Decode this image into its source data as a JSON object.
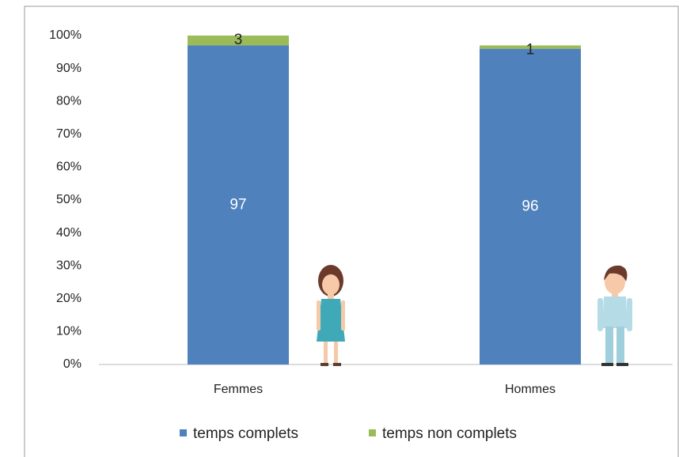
{
  "chart_data": {
    "type": "bar",
    "stacked": true,
    "categories": [
      "Femmes",
      "Hommes"
    ],
    "series": [
      {
        "name": "temps complets",
        "color": "#4f81bd",
        "values": [
          97,
          96
        ]
      },
      {
        "name": "temps non complets",
        "color": "#9bbb59",
        "values": [
          3,
          1
        ]
      }
    ],
    "ylim": [
      0,
      100
    ],
    "yticks": [
      {
        "value": 0,
        "label": "0%"
      },
      {
        "value": 10,
        "label": "10%"
      },
      {
        "value": 20,
        "label": "20%"
      },
      {
        "value": 30,
        "label": "30%"
      },
      {
        "value": 40,
        "label": "40%"
      },
      {
        "value": 50,
        "label": "50%"
      },
      {
        "value": 60,
        "label": "60%"
      },
      {
        "value": 70,
        "label": "70%"
      },
      {
        "value": 80,
        "label": "80%"
      },
      {
        "value": 90,
        "label": "90%"
      },
      {
        "value": 100,
        "label": "100%"
      }
    ],
    "legend": "bottom"
  }
}
